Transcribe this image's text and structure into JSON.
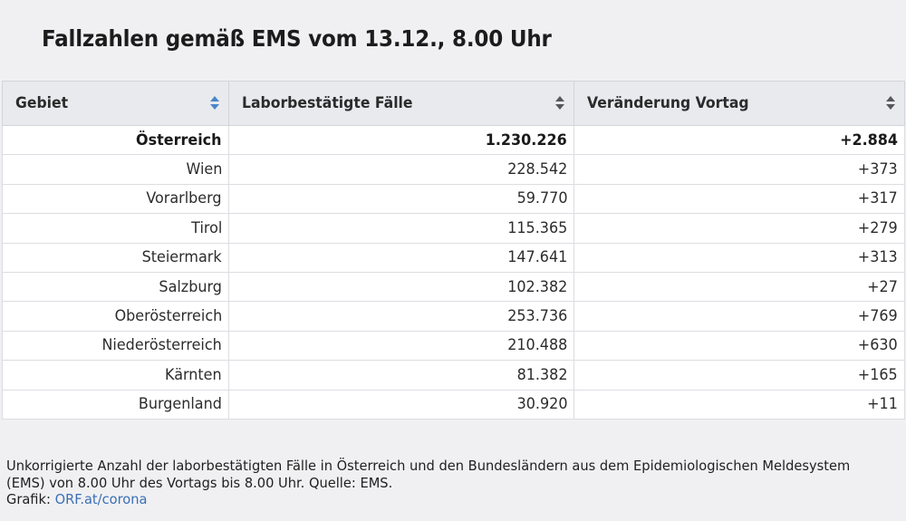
{
  "title": "Fallzahlen gemäß EMS vom 13.12., 8.00 Uhr",
  "table": {
    "columns": [
      {
        "label": "Gebiet",
        "sort_icon": "sort-arrows-icon",
        "sort_active": true
      },
      {
        "label": "Laborbestätigte Fälle",
        "sort_icon": "sort-arrows-icon",
        "sort_active": false
      },
      {
        "label": "Veränderung Vortag",
        "sort_icon": "sort-arrows-icon",
        "sort_active": false
      }
    ],
    "rows": [
      {
        "region": "Österreich",
        "cases": "1.230.226",
        "change": "+2.884",
        "total": true
      },
      {
        "region": "Wien",
        "cases": "228.542",
        "change": "+373"
      },
      {
        "region": "Vorarlberg",
        "cases": "59.770",
        "change": "+317"
      },
      {
        "region": "Tirol",
        "cases": "115.365",
        "change": "+279"
      },
      {
        "region": "Steiermark",
        "cases": "147.641",
        "change": "+313"
      },
      {
        "region": "Salzburg",
        "cases": "102.382",
        "change": "+27"
      },
      {
        "region": "Oberösterreich",
        "cases": "253.736",
        "change": "+769"
      },
      {
        "region": "Niederösterreich",
        "cases": "210.488",
        "change": "+630"
      },
      {
        "region": "Kärnten",
        "cases": "81.382",
        "change": "+165"
      },
      {
        "region": "Burgenland",
        "cases": "30.920",
        "change": "+11"
      }
    ]
  },
  "footer": {
    "description": "Unkorrigierte Anzahl der laborbestätigten Fälle in Österreich und den Bundesländern aus dem Epidemiologischen Meldesystem (EMS) von 8.00 Uhr des Vortags bis 8.00 Uhr. Quelle: EMS.",
    "credit_prefix": "Grafik: ",
    "credit_link": "ORF.at/corona"
  },
  "colors": {
    "background": "#f0f0f2",
    "header_bg": "#e9eaee",
    "active_sort": "#4a86c8",
    "link": "#3b6fb6"
  }
}
